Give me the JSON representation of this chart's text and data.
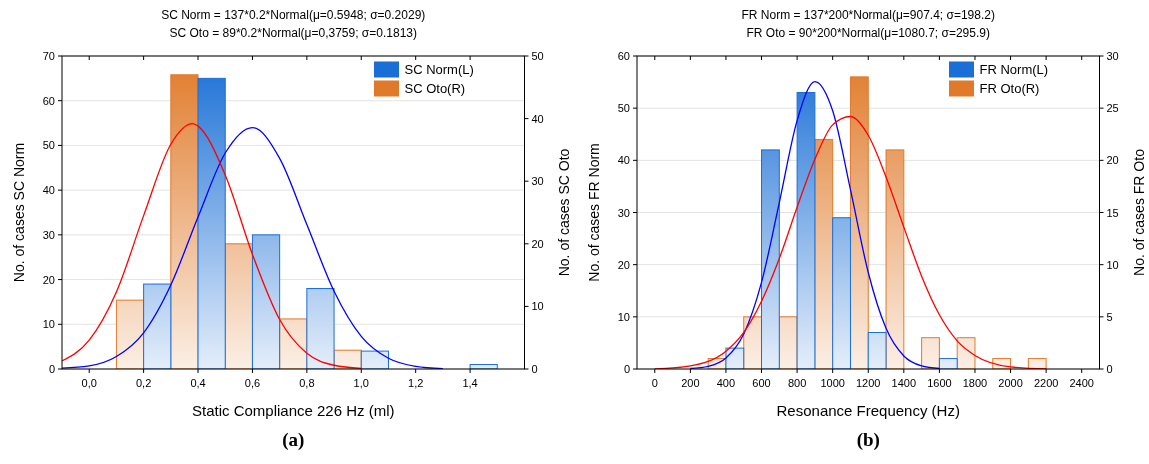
{
  "chart_data": [
    {
      "type": "bar",
      "title": "SC Norm = 137*0.2*Normal(μ=0.5948; σ=0.2029)",
      "subtitle": "SC Oto = 89*0.2*Normal(μ=0,3759; σ=0.1813)",
      "xlabel": "Static Compliance 226 Hz (ml)",
      "ylabel": "No. of cases SC Norm",
      "y2label": "No. of cases SC Oto",
      "annotations": [
        "(a)"
      ],
      "xlim": [
        -0.1,
        1.6
      ],
      "xticks": [
        {
          "value": 0,
          "label": "0,0"
        },
        {
          "value": 0.2,
          "label": "0,2"
        },
        {
          "value": 0.4,
          "label": "0,4"
        },
        {
          "value": 0.6,
          "label": "0,6"
        },
        {
          "value": 0.8,
          "label": "0,8"
        },
        {
          "value": 1.0,
          "label": "1,0"
        },
        {
          "value": 1.2,
          "label": "1,2"
        },
        {
          "value": 1.4,
          "label": "1,4"
        }
      ],
      "ylim": [
        0,
        70
      ],
      "yticks": [
        0,
        10,
        20,
        30,
        40,
        50,
        60,
        70
      ],
      "y2lim": [
        0,
        50
      ],
      "y2ticks": [
        0,
        10,
        20,
        30,
        40,
        50
      ],
      "grid": "y",
      "legend": "top right",
      "series": [
        {
          "name": "SC Oto(R)",
          "axis": "y2",
          "color": "#e07a2a",
          "x": [
            0.15,
            0.35,
            0.55,
            0.75,
            0.95
          ],
          "values": [
            11,
            47,
            20,
            8,
            3
          ]
        },
        {
          "name": "SC Norm(L)",
          "color": "#1a6fd6",
          "x": [
            0.25,
            0.45,
            0.65,
            0.85,
            1.05,
            1.45
          ],
          "values": [
            19,
            65,
            30,
            18,
            4,
            1
          ]
        },
        {
          "type": "line",
          "color": "#0000ff",
          "x": [
            -0.1,
            0,
            0.1,
            0.2,
            0.3,
            0.4,
            0.5,
            0.6,
            0.7,
            0.8,
            0.9,
            1.0,
            1.1,
            1.2,
            1.3
          ],
          "values": [
            0.2,
            0.7,
            2.8,
            8.1,
            18.8,
            34,
            48.3,
            54,
            47.1,
            32.3,
            17.4,
            7.3,
            2.4,
            0.6,
            0.1
          ]
        },
        {
          "type": "line",
          "axis": "y2",
          "color": "#ff0000",
          "x": [
            -0.1,
            0,
            0.1,
            0.2,
            0.3,
            0.38,
            0.4,
            0.5,
            0.6,
            0.7,
            0.8,
            0.9,
            1.0
          ],
          "values": [
            1.3,
            4.6,
            12.3,
            24.5,
            35.9,
            39.2,
            38.8,
            31,
            18.3,
            7.9,
            2.5,
            0.6,
            0.1
          ]
        }
      ]
    },
    {
      "type": "bar",
      "title": "FR Norm = 137*200*Normal(μ=907.4; σ=198.2)",
      "subtitle": "FR Oto = 90*200*Normal(μ=1080.7; σ=295.9)",
      "xlabel": "Resonance Frequency (Hz)",
      "ylabel": "No. of cases FR Norm",
      "y2label": "No. of cases FR Oto",
      "annotations": [
        "(b)"
      ],
      "xlim": [
        -100,
        2500
      ],
      "xticks": [
        0,
        200,
        400,
        600,
        800,
        1000,
        1200,
        1400,
        1600,
        1800,
        2000,
        2200,
        2400
      ],
      "ylim": [
        0,
        60
      ],
      "yticks": [
        0,
        10,
        20,
        30,
        40,
        50,
        60
      ],
      "y2lim": [
        0,
        30
      ],
      "y2ticks": [
        0,
        5,
        10,
        15,
        20,
        25,
        30
      ],
      "grid": "y",
      "legend": "top right",
      "series": [
        {
          "name": "FR Oto(R)",
          "axis": "y2",
          "color": "#e07a2a",
          "x": [
            350,
            550,
            750,
            950,
            1150,
            1350,
            1550,
            1750,
            1950,
            2150
          ],
          "values": [
            1,
            5,
            5,
            22,
            28,
            21,
            3,
            3,
            1,
            1
          ]
        },
        {
          "name": "FR Norm(L)",
          "color": "#1a6fd6",
          "x": [
            450,
            650,
            850,
            1050,
            1250,
            1650
          ],
          "values": [
            4,
            42,
            53,
            29,
            7,
            2
          ]
        },
        {
          "type": "line",
          "color": "#0000ff",
          "x": [
            200,
            300,
            400,
            500,
            600,
            700,
            800,
            900,
            1000,
            1100,
            1200,
            1300,
            1400,
            1500,
            1600
          ],
          "values": [
            0.1,
            0.5,
            2.1,
            6.7,
            16.6,
            31.9,
            47.6,
            55.1,
            49.5,
            34.4,
            18.5,
            7.8,
            2.5,
            0.6,
            0.1
          ]
        },
        {
          "type": "line",
          "axis": "y2",
          "color": "#ff0000",
          "x": [
            0,
            200,
            400,
            500,
            600,
            700,
            800,
            900,
            1000,
            1100,
            1200,
            1300,
            1400,
            1500,
            1600,
            1700,
            1800,
            2000,
            2200
          ],
          "values": [
            0,
            0.3,
            1.7,
            3.5,
            6.5,
            10.6,
            15.5,
            20.1,
            23.4,
            24.2,
            22.4,
            18.4,
            13.6,
            8.9,
            5.2,
            2.7,
            1.3,
            0.2,
            0
          ]
        }
      ]
    }
  ]
}
